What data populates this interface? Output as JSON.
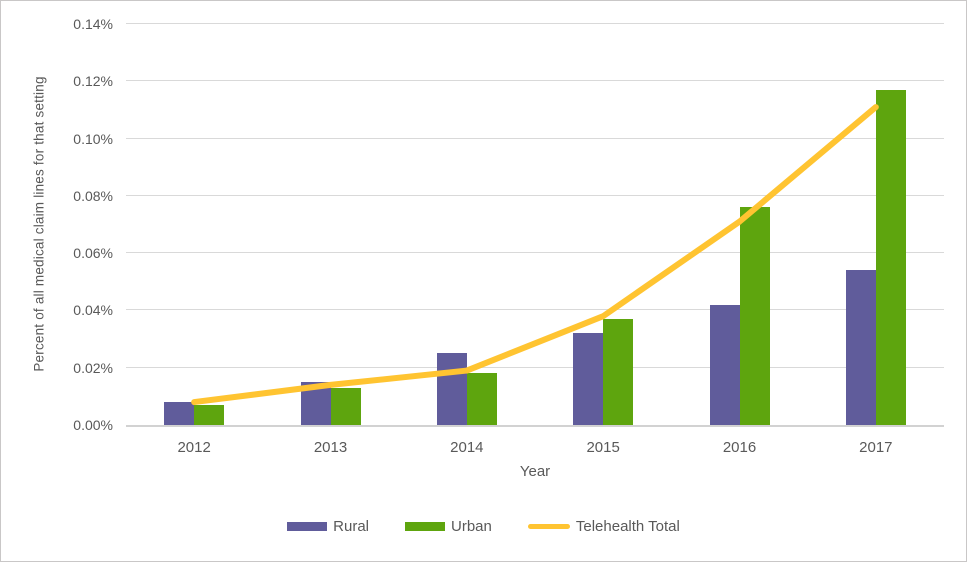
{
  "figure": {
    "background": "#FFFFFF",
    "border_color": "#C9C7C7"
  },
  "chart_data": {
    "type": "bar",
    "subtype": "grouped bars with overlaid line (combo chart)",
    "title": "",
    "xlabel": "Year",
    "ylabel": "Percent of all medical claim lines for that setting",
    "categories": [
      "2012",
      "2013",
      "2014",
      "2015",
      "2016",
      "2017"
    ],
    "series": [
      {
        "name": "Rural",
        "type": "bar",
        "color": "#605C9B",
        "values": [
          0.008,
          0.015,
          0.025,
          0.032,
          0.042,
          0.054
        ]
      },
      {
        "name": "Urban",
        "type": "bar",
        "color": "#5EA50E",
        "values": [
          0.007,
          0.013,
          0.018,
          0.037,
          0.076,
          0.117
        ]
      },
      {
        "name": "Telehealth Total",
        "type": "line",
        "color": "#FFC431",
        "values": [
          0.008,
          0.014,
          0.019,
          0.038,
          0.071,
          0.111
        ]
      }
    ],
    "unit": "%",
    "ylim": [
      0,
      0.14
    ],
    "ytick_labels": [
      "0.00%",
      "0.02%",
      "0.04%",
      "0.06%",
      "0.08%",
      "0.10%",
      "0.12%",
      "0.14%"
    ],
    "grid": true,
    "legend_position": "bottom",
    "colors": {
      "gridline": "#D9D9D9",
      "axis_line": "#D2D2D2",
      "text": "#595959"
    }
  }
}
